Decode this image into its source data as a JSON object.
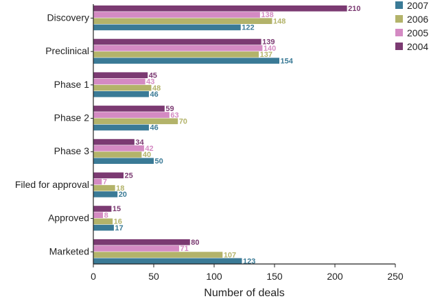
{
  "chart_data": {
    "type": "bar",
    "orientation": "horizontal",
    "categories": [
      "Discovery",
      "Preclinical",
      "Phase 1",
      "Phase 2",
      "Phase 3",
      "Filed for approval",
      "Approved",
      "Marketed"
    ],
    "series": [
      {
        "name": "2004",
        "color": "#7b3a72",
        "values": [
          210,
          139,
          45,
          59,
          34,
          25,
          15,
          80
        ]
      },
      {
        "name": "2005",
        "color": "#d48ac3",
        "values": [
          138,
          140,
          43,
          63,
          42,
          7,
          8,
          71
        ]
      },
      {
        "name": "2006",
        "color": "#b3b36a",
        "values": [
          148,
          137,
          48,
          70,
          40,
          18,
          16,
          107
        ]
      },
      {
        "name": "2007",
        "color": "#3a7a96",
        "values": [
          122,
          154,
          46,
          46,
          50,
          20,
          17,
          123
        ]
      }
    ],
    "legend_order": [
      "2007",
      "2006",
      "2005",
      "2004"
    ],
    "legend_position": "top-right",
    "xlabel": "Number of deals",
    "ylabel": "",
    "xlim": [
      0,
      250
    ],
    "xticks": [
      0,
      50,
      100,
      150,
      200,
      250
    ],
    "grid": false,
    "data_labels": true
  }
}
